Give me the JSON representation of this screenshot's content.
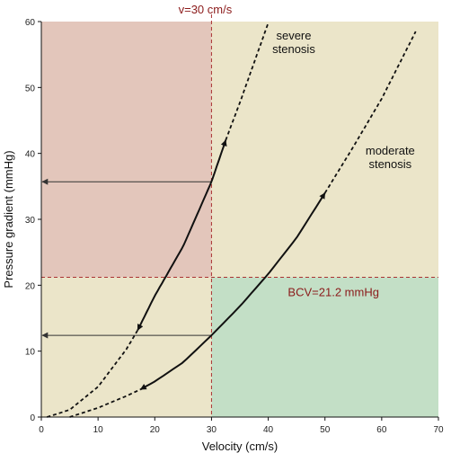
{
  "chart_data": {
    "type": "line",
    "xlabel": "Velocity (cm/s)",
    "ylabel": "Pressure gradient (mmHg)",
    "xlim": [
      0,
      70
    ],
    "ylim": [
      0,
      60
    ],
    "xticks": [
      0,
      10,
      20,
      30,
      40,
      50,
      60,
      70
    ],
    "yticks": [
      0,
      10,
      20,
      30,
      40,
      50,
      60
    ],
    "grid": false,
    "regions": [
      {
        "x": [
          0,
          30
        ],
        "y": [
          21.2,
          60
        ],
        "color": "#e3c6bb"
      },
      {
        "x": [
          30,
          70
        ],
        "y": [
          21.2,
          60
        ],
        "color": "#ebe5c9"
      },
      {
        "x": [
          0,
          30
        ],
        "y": [
          0,
          21.2
        ],
        "color": "#ebe5c9"
      },
      {
        "x": [
          30,
          70
        ],
        "y": [
          0,
          21.2
        ],
        "color": "#c3dfc6"
      }
    ],
    "reference_lines": {
      "velocity": {
        "value": 30,
        "label": "v=30 cm/s"
      },
      "pressure": {
        "value": 21.2,
        "label": "BCV=21.2 mmHg"
      }
    },
    "series": [
      {
        "name": "severe\nstenosis",
        "x": [
          1,
          5,
          10,
          15,
          17,
          20,
          25,
          30,
          32.5,
          35,
          40
        ],
        "y": [
          0,
          1.1,
          4.6,
          10.3,
          13.2,
          18.4,
          25.9,
          35.7,
          42,
          47.7,
          59.8
        ]
      },
      {
        "name": "moderate\nstenosis",
        "x": [
          5,
          10,
          15,
          17.5,
          20,
          25,
          30,
          35,
          40,
          45,
          50,
          55,
          60,
          66
        ],
        "y": [
          0,
          1.4,
          3.2,
          4.2,
          5.4,
          8.3,
          12.4,
          16.8,
          21.7,
          27.2,
          34,
          41,
          48.3,
          58.5
        ]
      }
    ],
    "arrows": [
      {
        "from": [
          30,
          35.7
        ],
        "to": [
          0,
          35.7
        ],
        "color": "#333333"
      },
      {
        "from": [
          30,
          12.4
        ],
        "to": [
          0,
          12.4
        ],
        "color": "#333333"
      }
    ]
  }
}
